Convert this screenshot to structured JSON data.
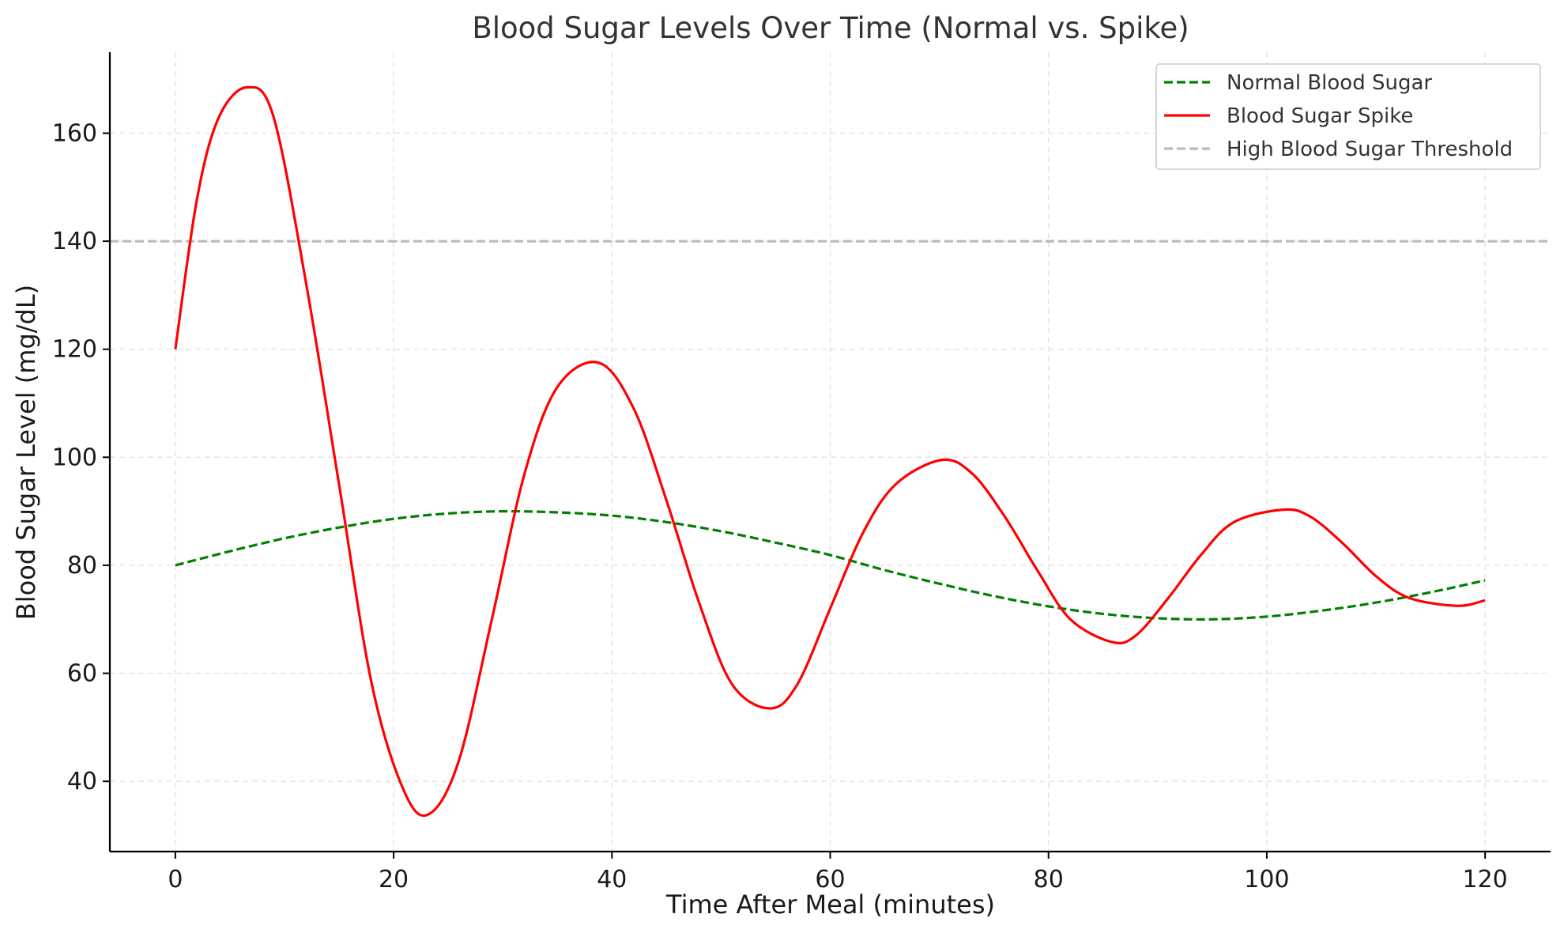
{
  "chart_data": {
    "type": "line",
    "title": "Blood Sugar Levels Over Time (Normal vs. Spike)",
    "xlabel": "Time After Meal (minutes)",
    "ylabel": "Blood Sugar Level (mg/dL)",
    "xlim": [
      -6,
      126
    ],
    "ylim": [
      27,
      175
    ],
    "xticks": [
      0,
      20,
      40,
      60,
      80,
      100,
      120
    ],
    "yticks": [
      40,
      60,
      80,
      100,
      120,
      140,
      160
    ],
    "grid": true,
    "legend_position": "top-right",
    "series": [
      {
        "name": "Normal Blood Sugar",
        "color": "#008000",
        "style": "dashed",
        "x": [
          0,
          5,
          10,
          15,
          20,
          25,
          30,
          35,
          40,
          45,
          50,
          55,
          60,
          65,
          70,
          75,
          80,
          85,
          90,
          95,
          100,
          105,
          110,
          115,
          120
        ],
        "y": [
          80,
          82.6,
          85,
          87,
          88.6,
          89.6,
          90,
          89.8,
          89.2,
          88,
          86.3,
          84.2,
          81.9,
          79.1,
          76.6,
          74.3,
          72.4,
          71,
          70.2,
          70,
          70.5,
          71.6,
          73.1,
          75,
          77.2
        ]
      },
      {
        "name": "Blood Sugar Spike",
        "color": "#ff0000",
        "style": "solid",
        "x": [
          0,
          2,
          4,
          6.6,
          9,
          12,
          15,
          18,
          21,
          23.3,
          26,
          29,
          32,
          35,
          38.8,
          42,
          45,
          48,
          51,
          54.5,
          57,
          60,
          63,
          66,
          70.2,
          73,
          76,
          79,
          82,
          85.8,
          88,
          91,
          94,
          97,
          101.5,
          104,
          107,
          110,
          113,
          117.4,
          120
        ],
        "y": [
          120,
          148,
          163,
          168.5,
          163,
          132,
          95,
          58,
          38,
          34,
          44,
          70,
          97,
          113,
          117.5,
          109,
          92,
          73,
          58,
          53.5,
          58,
          72,
          86,
          95,
          99.5,
          97,
          89,
          79,
          70,
          65.8,
          67,
          74,
          82,
          88,
          90.3,
          89,
          84,
          78,
          74,
          72.5,
          73.5
        ]
      },
      {
        "name": "High Blood Sugar Threshold",
        "color": "#bbbbbb",
        "style": "dashed",
        "x": [
          -6,
          126
        ],
        "y": [
          140,
          140
        ]
      }
    ]
  }
}
